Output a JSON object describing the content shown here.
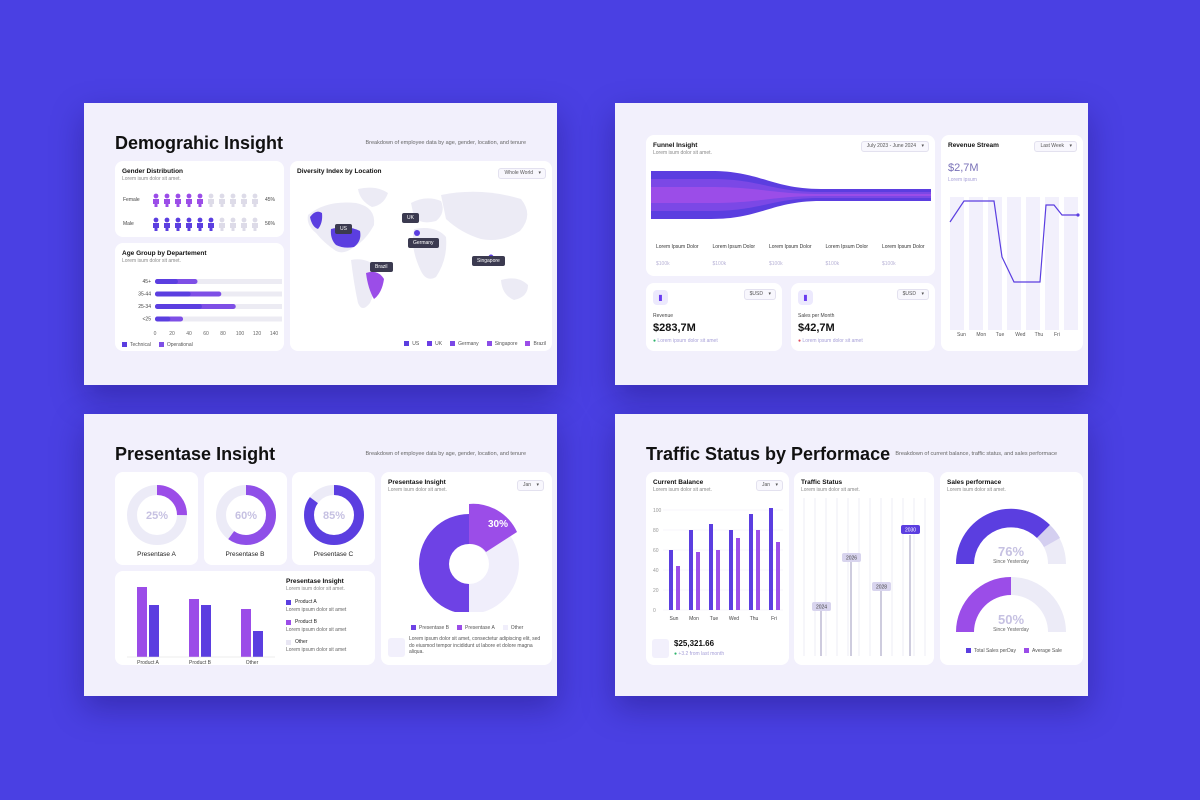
{
  "colors": {
    "background": "#4a40e3",
    "primary": "#5b3ee0",
    "purple": "#9b4de8",
    "light": "#e9e6f7",
    "pale": "#f2f0fc"
  },
  "s1": {
    "title": "Demograhic Insight",
    "subtitle": "Breakdown of employee data by age, gender, location, and tenure",
    "gender": {
      "title": "Gender Distribution",
      "subtitle": "Lorem isum dolor sit amet.",
      "rows": [
        {
          "label": "Female",
          "filled": 5,
          "pct": "45%"
        },
        {
          "label": "Male",
          "filled": 6,
          "pct": "56%"
        }
      ]
    },
    "age": {
      "title": "Age Group by Departement",
      "subtitle": "Lorem isum dolor sit amet.",
      "categories": [
        "45+",
        "35-44",
        "25-34",
        "<25"
      ],
      "technical": [
        50,
        78,
        95,
        33
      ],
      "operational": [
        45,
        70,
        92,
        30
      ],
      "ticks": [
        "0",
        "20",
        "40",
        "60",
        "80",
        "100",
        "120",
        "140",
        "160"
      ],
      "legend": [
        "Technical",
        "Operational"
      ]
    },
    "map": {
      "title": "Diversity Index by Location",
      "dropdown": "Whole World",
      "labels": [
        "US",
        "UK",
        "Germany",
        "Brazil",
        "Singapore"
      ],
      "legend": [
        "US",
        "UK",
        "Germany",
        "Singapore",
        "Brazil"
      ]
    }
  },
  "s2": {
    "funnel": {
      "title": "Funnel Insight",
      "subtitle": "Lorem isum dolor sit amet.",
      "dropdown": "July 2023 - June 2024",
      "stages": [
        {
          "label": "Lorem Ipsum Dolor",
          "value": "$100k"
        },
        {
          "label": "Lorem Ipsum Dolor",
          "value": "$100k"
        },
        {
          "label": "Lorem Ipsum Dolor",
          "value": "$100k"
        },
        {
          "label": "Lorem Ipsum Dolor",
          "value": "$100k"
        },
        {
          "label": "Lorem Ipsum Dolor",
          "value": "$100k"
        }
      ]
    },
    "revenue": {
      "dropdown": "$USD",
      "label": "Revenue",
      "value": "$283,7M",
      "note": "Lorem ipsum dolor sit amet"
    },
    "sales": {
      "dropdown": "$USD",
      "label": "Sales per Month",
      "value": "$42,7M",
      "note": "Lorem ipsum dolor sit amet"
    },
    "stream": {
      "title": "Revenue Stream",
      "dropdown": "Last Week",
      "value": "$2,7M",
      "note": "Lorem ipsum"
    }
  },
  "s3": {
    "title": "Presentase Insight",
    "subtitle": "Breakdown of employee data by age, gender, location, and tenure",
    "donuts": [
      {
        "label": "Presentase A",
        "value": "25%",
        "fraction": 0.25,
        "color": "#9b4de8"
      },
      {
        "label": "Presentase B",
        "value": "60%",
        "fraction": 0.6,
        "color": "#8f4fe8"
      },
      {
        "label": "Presentase C",
        "value": "85%",
        "fraction": 0.85,
        "color": "#5b3ee0"
      }
    ],
    "bars": {
      "categories": [
        "Product A",
        "Product B",
        "Other"
      ]
    },
    "legendcard": {
      "title": "Presentase Insight",
      "subtitle": "Lorem isum dolor sit amet.",
      "items": [
        {
          "name": "Product A",
          "text": "Lorem ipsum dolor sit amet"
        },
        {
          "name": "Product B",
          "text": "Lorem ipsum dolor sit amet"
        },
        {
          "name": "Other",
          "text": "Lorem ipsum dolor sit amet"
        }
      ]
    },
    "pie": {
      "title": "Presentase Insight",
      "subtitle": "Lorem isum dolor sit amet.",
      "dropdown": "Jan",
      "label": "30%",
      "legend": [
        "Presentase B",
        "Presentase A",
        "Other"
      ],
      "text": "Lorem ipsum dolor sit amet, consectetur adipiscing elit, sed do eiusmod tempor incididunt ut labore et dolore magna aliqua."
    }
  },
  "s4": {
    "title": "Traffic Status by Performace",
    "subtitle": "Breakdown of current balance, traffic status, and sales performace",
    "balance": {
      "title": "Current Balance",
      "subtitle": "Lorem isum dolor sit amet.",
      "dropdown": "Jan",
      "days": [
        "Sun",
        "Mon",
        "Tue",
        "Wed",
        "Thu",
        "Fri"
      ],
      "yticks": [
        "100",
        "80",
        "60",
        "40",
        "20",
        "0"
      ],
      "value": "$25,321.66",
      "note": "+3.2 from last month"
    },
    "traffic": {
      "title": "Traffic Status",
      "subtitle": "Lorem isum dolor sit amet.",
      "years": [
        "2024",
        "2026",
        "2028",
        "2030"
      ]
    },
    "sales": {
      "title": "Sales performace",
      "subtitle": "Lorem isum dolor sit amet.",
      "g1": {
        "value": "76%",
        "label": "Since Yesterday"
      },
      "g2": {
        "value": "50%",
        "label": "Since Yesterday"
      },
      "legend": [
        "Total Sales perDay",
        "Average Sale"
      ]
    }
  }
}
